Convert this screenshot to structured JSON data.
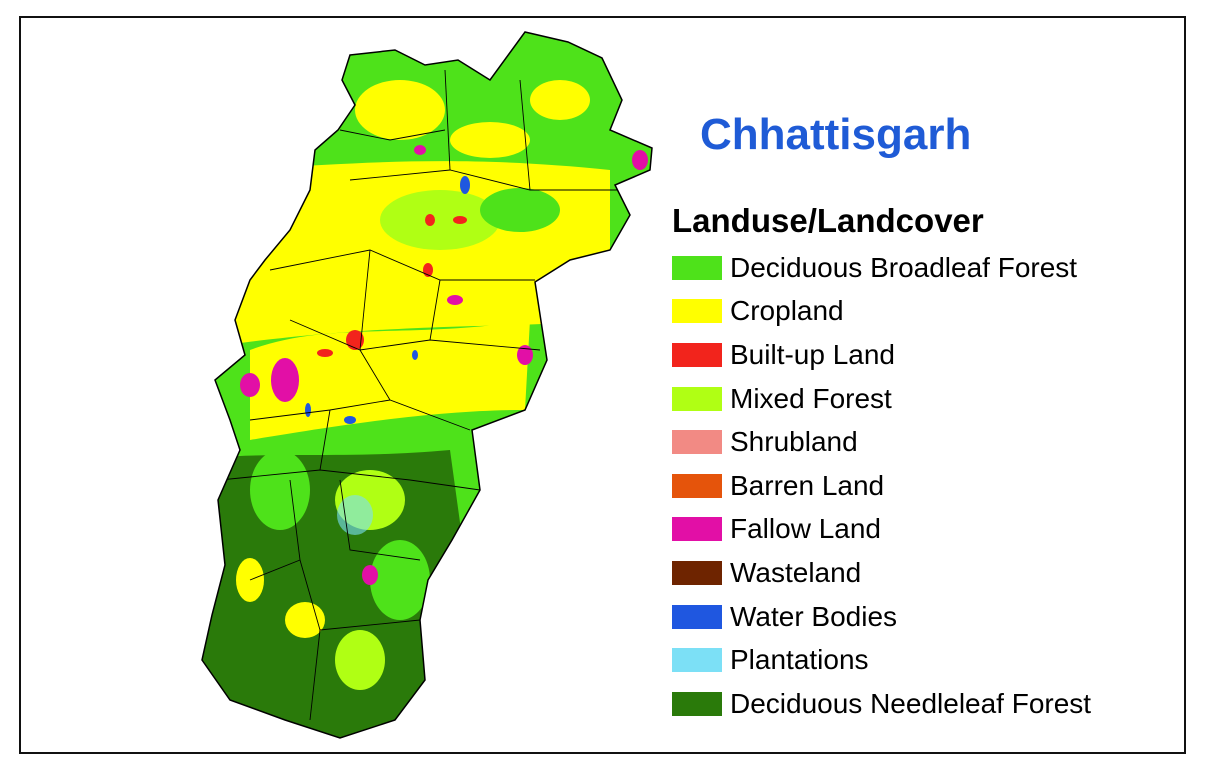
{
  "map": {
    "title": "Chhattisgarh",
    "legend": {
      "title": "Landuse/Landcover",
      "items": [
        {
          "label": "Deciduous Broadleaf Forest",
          "color": "#4ee21a"
        },
        {
          "label": "Cropland",
          "color": "#ffff00"
        },
        {
          "label": "Built-up Land",
          "color": "#f2241c"
        },
        {
          "label": "Mixed Forest",
          "color": "#b0ff14"
        },
        {
          "label": "Shrubland",
          "color": "#f28a84"
        },
        {
          "label": "Barren Land",
          "color": "#e5540b"
        },
        {
          "label": "Fallow Land",
          "color": "#e20fa6"
        },
        {
          "label": "Wasteland",
          "color": "#6e2400"
        },
        {
          "label": "Water Bodies",
          "color": "#1f57e0"
        },
        {
          "label": "Plantations",
          "color": "#7ce0f6"
        },
        {
          "label": "Deciduous Needleleaf Forest",
          "color": "#2a7a0a"
        }
      ]
    }
  }
}
